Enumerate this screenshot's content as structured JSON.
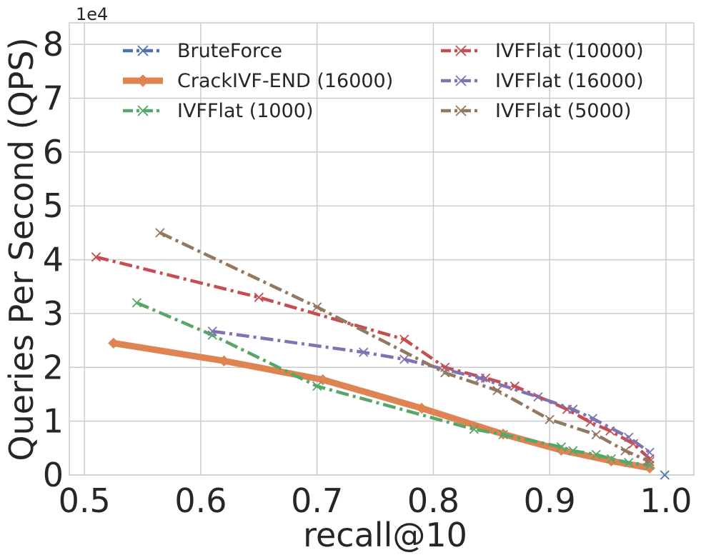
{
  "chart_data": {
    "type": "line",
    "title": "",
    "xlabel": "recall@10",
    "ylabel": "Queries Per Second (QPS)",
    "y_offset_label": "1e4",
    "xlim": [
      0.487,
      1.024
    ],
    "ylim": [
      0,
      8.4
    ],
    "xticks": [
      0.5,
      0.6,
      0.7,
      0.8,
      0.9,
      1.0
    ],
    "xtick_labels": [
      "0.5",
      "0.6",
      "0.7",
      "0.8",
      "0.9",
      "1.0"
    ],
    "yticks": [
      0,
      1,
      2,
      3,
      4,
      5,
      6,
      7,
      8
    ],
    "ytick_labels": [
      "0",
      "1",
      "2",
      "3",
      "4",
      "5",
      "6",
      "7",
      "8"
    ],
    "grid": true,
    "legend_placement": "top",
    "series": [
      {
        "name": "BruteForce",
        "color": "#4c72b0",
        "marker": "x",
        "dash": "dashdot",
        "width": 4,
        "x": [
          0.999
        ],
        "y": [
          0.0
        ]
      },
      {
        "name": "CrackIVF-END (16000)",
        "color": "#dd8452",
        "marker": "diamond",
        "dash": "solid",
        "width": 9,
        "x": [
          0.525,
          0.62,
          0.705,
          0.79,
          0.86,
          0.91,
          0.953,
          0.986
        ],
        "y": [
          2.45,
          2.12,
          1.77,
          1.24,
          0.76,
          0.46,
          0.26,
          0.13
        ]
      },
      {
        "name": "IVFFlat (1000)",
        "color": "#55a868",
        "marker": "x",
        "dash": "dashdot",
        "width": 4.5,
        "x": [
          0.545,
          0.61,
          0.7,
          0.835,
          0.86,
          0.91,
          0.92,
          0.94,
          0.953,
          0.968,
          0.986
        ],
        "y": [
          3.2,
          2.6,
          1.65,
          0.85,
          0.75,
          0.52,
          0.45,
          0.38,
          0.3,
          0.23,
          0.18
        ]
      },
      {
        "name": "IVFFlat (10000)",
        "color": "#c44e52",
        "marker": "x",
        "dash": "dashdot",
        "width": 4.5,
        "x": [
          0.51,
          0.65,
          0.775,
          0.81,
          0.845,
          0.87,
          0.915,
          0.935,
          0.952,
          0.972,
          0.986
        ],
        "y": [
          4.05,
          3.3,
          2.52,
          2.0,
          1.8,
          1.65,
          1.22,
          0.98,
          0.82,
          0.58,
          0.3
        ]
      },
      {
        "name": "IVFFlat (16000)",
        "color": "#8172b2",
        "marker": "x",
        "dash": "dashdot",
        "width": 4.5,
        "x": [
          0.61,
          0.74,
          0.775,
          0.84,
          0.89,
          0.92,
          0.937,
          0.968,
          0.986
        ],
        "y": [
          2.67,
          2.28,
          2.15,
          1.8,
          1.45,
          1.22,
          1.05,
          0.7,
          0.42
        ]
      },
      {
        "name": "IVFFlat (5000)",
        "color": "#937860",
        "marker": "x",
        "dash": "dashdot",
        "width": 4.5,
        "x": [
          0.565,
          0.7,
          0.81,
          0.855,
          0.9,
          0.94,
          0.965,
          0.986
        ],
        "y": [
          4.5,
          3.12,
          1.9,
          1.57,
          1.03,
          0.75,
          0.45,
          0.25
        ]
      }
    ]
  }
}
